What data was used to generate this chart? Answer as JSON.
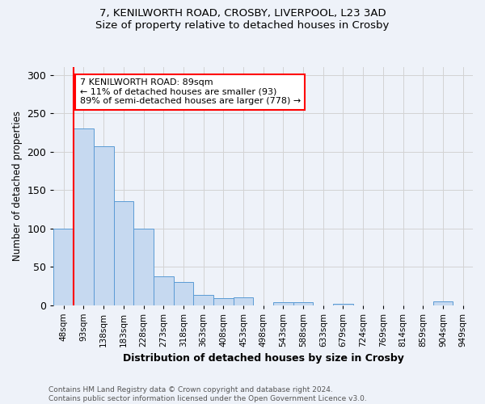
{
  "title1": "7, KENILWORTH ROAD, CROSBY, LIVERPOOL, L23 3AD",
  "title2": "Size of property relative to detached houses in Crosby",
  "xlabel": "Distribution of detached houses by size in Crosby",
  "ylabel": "Number of detached properties",
  "categories": [
    "48sqm",
    "93sqm",
    "138sqm",
    "183sqm",
    "228sqm",
    "273sqm",
    "318sqm",
    "363sqm",
    "408sqm",
    "453sqm",
    "498sqm",
    "543sqm",
    "588sqm",
    "633sqm",
    "679sqm",
    "724sqm",
    "769sqm",
    "814sqm",
    "859sqm",
    "904sqm",
    "949sqm"
  ],
  "values": [
    100,
    230,
    207,
    135,
    100,
    37,
    30,
    13,
    9,
    10,
    0,
    4,
    4,
    0,
    2,
    0,
    0,
    0,
    0,
    5,
    0
  ],
  "bar_color": "#c6d9f0",
  "bar_edge_color": "#5b9bd5",
  "vline_color": "red",
  "annotation_text": "7 KENILWORTH ROAD: 89sqm\n← 11% of detached houses are smaller (93)\n89% of semi-detached houses are larger (778) →",
  "annotation_box_color": "white",
  "annotation_box_edge": "red",
  "ylim": [
    0,
    310
  ],
  "yticks": [
    0,
    50,
    100,
    150,
    200,
    250,
    300
  ],
  "footer": "Contains HM Land Registry data © Crown copyright and database right 2024.\nContains public sector information licensed under the Open Government Licence v3.0.",
  "background_color": "#eef2f9"
}
